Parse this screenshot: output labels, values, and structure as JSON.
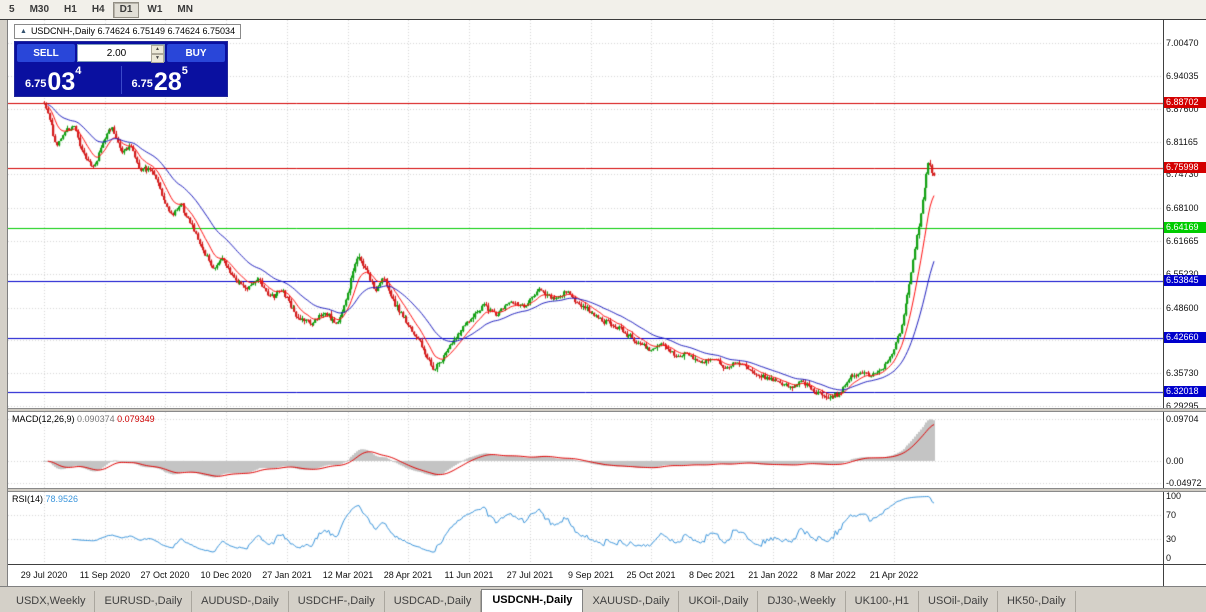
{
  "toolbar": {
    "timeframes": [
      {
        "label": "5",
        "active": false
      },
      {
        "label": "M30",
        "active": false
      },
      {
        "label": "H1",
        "active": false
      },
      {
        "label": "H4",
        "active": false
      },
      {
        "label": "D1",
        "active": true
      },
      {
        "label": "W1",
        "active": false
      },
      {
        "label": "MN",
        "active": false
      }
    ]
  },
  "chart_title": {
    "collapse_icon": "▲",
    "text": "USDCNH-,Daily 6.74624 6.75149 6.74624 6.75034"
  },
  "trade_panel": {
    "sell_label": "SELL",
    "buy_label": "BUY",
    "volume": "2.00",
    "sell_price": {
      "base": "6.75",
      "big": "03",
      "sup": "4"
    },
    "buy_price": {
      "base": "6.75",
      "big": "28",
      "sup": "5"
    }
  },
  "price_axis": {
    "labels": [
      "7.00470",
      "6.94035",
      "6.87600",
      "6.81165",
      "6.74730",
      "6.68100",
      "6.61665",
      "6.55230",
      "6.48600",
      "6.42165",
      "6.35730",
      "6.29295"
    ]
  },
  "hlines": [
    {
      "price": 6.88702,
      "color": "#d40000",
      "label": "6.88702"
    },
    {
      "price": 6.75998,
      "color": "#d40000",
      "label": "6.75998"
    },
    {
      "price": 6.64169,
      "color": "#00cc00",
      "label": "6.64169"
    },
    {
      "price": 6.53845,
      "color": "#0000cc",
      "label": "6.53845"
    },
    {
      "price": 6.4266,
      "color": "#0000cc",
      "label": "6.42660"
    },
    {
      "price": 6.32018,
      "color": "#0000cc",
      "label": "6.32018"
    }
  ],
  "indicators": {
    "macd": {
      "name": "MACD(12,26,9)",
      "value": "0.090374",
      "signal": "0.079349",
      "axis": [
        {
          "label": "0.09704",
          "value": 0.09704
        },
        {
          "label": "0.00",
          "value": 0.0
        },
        {
          "label": "-0.04972",
          "value": -0.04972
        }
      ]
    },
    "rsi": {
      "name": "RSI(14)",
      "value": "78.9526",
      "axis": [
        {
          "label": "100",
          "value": 100
        },
        {
          "label": "70",
          "value": 70
        },
        {
          "label": "30",
          "value": 30
        },
        {
          "label": "0",
          "value": 0
        }
      ]
    }
  },
  "date_axis": {
    "labels": [
      "29 Jul 2020",
      "11 Sep 2020",
      "27 Oct 2020",
      "10 Dec 2020",
      "27 Jan 2021",
      "12 Mar 2021",
      "28 Apr 2021",
      "11 Jun 2021",
      "27 Jul 2021",
      "9 Sep 2021",
      "25 Oct 2021",
      "8 Dec 2021",
      "21 Jan 2022",
      "8 Mar 2022",
      "21 Apr 2022"
    ]
  },
  "tabs": [
    {
      "label": "USDX,Weekly",
      "active": false
    },
    {
      "label": "EURUSD-,Daily",
      "active": false
    },
    {
      "label": "AUDUSD-,Daily",
      "active": false
    },
    {
      "label": "USDCHF-,Daily",
      "active": false
    },
    {
      "label": "USDCAD-,Daily",
      "active": false
    },
    {
      "label": "USDCNH-,Daily",
      "active": true
    },
    {
      "label": "XAUUSD-,Daily",
      "active": false
    },
    {
      "label": "UKOil-,Daily",
      "active": false
    },
    {
      "label": "DJ30-,Weekly",
      "active": false
    },
    {
      "label": "UK100-,H1",
      "active": false
    },
    {
      "label": "USOil-,Daily",
      "active": false
    },
    {
      "label": "HK50-,Daily",
      "active": false
    }
  ],
  "colors": {
    "up": "#12a012",
    "down": "#d41c1c",
    "ma_fast": "#ff1010",
    "ma_slow": "#2020c0",
    "macd_hist": "#c4c4c4",
    "macd_signal": "#e00000",
    "rsi_line": "#3c96dc",
    "grid": "#d6d6d6"
  },
  "chart_data": {
    "type": "candlestick",
    "symbol": "USDCNH-",
    "timeframe": "Daily",
    "ohlc_last": {
      "open": 6.74624,
      "high": 6.75149,
      "low": 6.74624,
      "close": 6.75034
    },
    "price_range": {
      "min": 6.289,
      "max": 7.05
    },
    "candle_count": 470,
    "tick_step": 32,
    "seed": 1337,
    "noise": 0.009,
    "overlays": {
      "ma_fast_period": 10,
      "ma_slow_period": 30,
      "macd": [
        12,
        26,
        9
      ],
      "rsi_period": 14
    },
    "price_path": [
      [
        0.0,
        6.888
      ],
      [
        0.006,
        6.858
      ],
      [
        0.014,
        6.8
      ],
      [
        0.022,
        6.828
      ],
      [
        0.034,
        6.842
      ],
      [
        0.044,
        6.788
      ],
      [
        0.056,
        6.76
      ],
      [
        0.066,
        6.81
      ],
      [
        0.076,
        6.843
      ],
      [
        0.088,
        6.79
      ],
      [
        0.098,
        6.806
      ],
      [
        0.108,
        6.752
      ],
      [
        0.12,
        6.762
      ],
      [
        0.132,
        6.706
      ],
      [
        0.144,
        6.665
      ],
      [
        0.154,
        6.69
      ],
      [
        0.166,
        6.645
      ],
      [
        0.178,
        6.603
      ],
      [
        0.19,
        6.563
      ],
      [
        0.2,
        6.585
      ],
      [
        0.212,
        6.546
      ],
      [
        0.226,
        6.522
      ],
      [
        0.24,
        6.546
      ],
      [
        0.254,
        6.506
      ],
      [
        0.268,
        6.52
      ],
      [
        0.284,
        6.47
      ],
      [
        0.3,
        6.455
      ],
      [
        0.314,
        6.476
      ],
      [
        0.33,
        6.455
      ],
      [
        0.342,
        6.52
      ],
      [
        0.352,
        6.585
      ],
      [
        0.362,
        6.562
      ],
      [
        0.372,
        6.52
      ],
      [
        0.382,
        6.545
      ],
      [
        0.394,
        6.494
      ],
      [
        0.408,
        6.455
      ],
      [
        0.422,
        6.42
      ],
      [
        0.438,
        6.362
      ],
      [
        0.452,
        6.398
      ],
      [
        0.466,
        6.435
      ],
      [
        0.48,
        6.468
      ],
      [
        0.494,
        6.492
      ],
      [
        0.508,
        6.47
      ],
      [
        0.522,
        6.498
      ],
      [
        0.54,
        6.488
      ],
      [
        0.556,
        6.522
      ],
      [
        0.572,
        6.505
      ],
      [
        0.588,
        6.516
      ],
      [
        0.604,
        6.488
      ],
      [
        0.62,
        6.47
      ],
      [
        0.636,
        6.452
      ],
      [
        0.652,
        6.438
      ],
      [
        0.668,
        6.418
      ],
      [
        0.682,
        6.404
      ],
      [
        0.696,
        6.416
      ],
      [
        0.71,
        6.388
      ],
      [
        0.724,
        6.396
      ],
      [
        0.738,
        6.378
      ],
      [
        0.752,
        6.386
      ],
      [
        0.766,
        6.368
      ],
      [
        0.78,
        6.38
      ],
      [
        0.794,
        6.362
      ],
      [
        0.808,
        6.352
      ],
      [
        0.822,
        6.342
      ],
      [
        0.836,
        6.33
      ],
      [
        0.852,
        6.34
      ],
      [
        0.866,
        6.322
      ],
      [
        0.88,
        6.31
      ],
      [
        0.894,
        6.316
      ],
      [
        0.906,
        6.348
      ],
      [
        0.918,
        6.36
      ],
      [
        0.93,
        6.352
      ],
      [
        0.942,
        6.368
      ],
      [
        0.952,
        6.388
      ],
      [
        0.962,
        6.44
      ],
      [
        0.972,
        6.528
      ],
      [
        0.98,
        6.618
      ],
      [
        0.987,
        6.69
      ],
      [
        0.993,
        6.772
      ],
      [
        1.0,
        6.748
      ]
    ]
  }
}
